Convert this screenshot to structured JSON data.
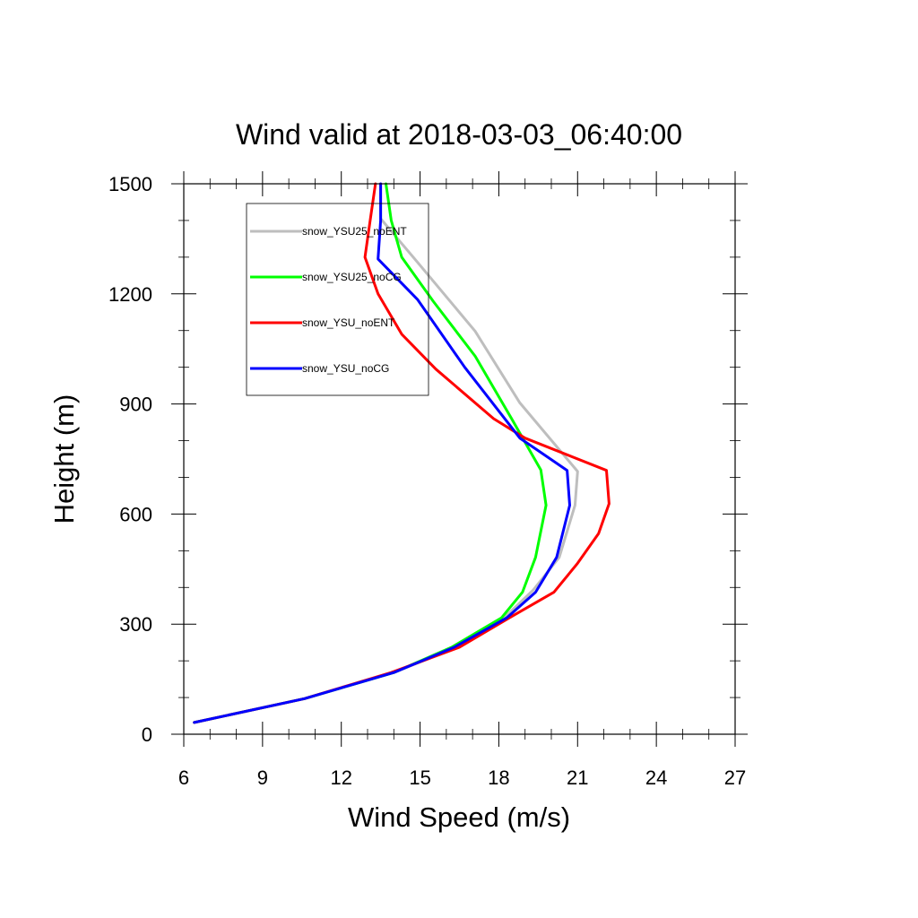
{
  "chart_data": {
    "type": "line",
    "title": "Wind valid at 2018-03-03_06:40:00",
    "xlabel": "Wind Speed (m/s)",
    "ylabel": "Height (m)",
    "xlim": [
      6,
      27
    ],
    "ylim": [
      0,
      1500
    ],
    "xticks": [
      "6",
      "9",
      "12",
      "15",
      "18",
      "21",
      "24",
      "27"
    ],
    "yticks": [
      "0",
      "300",
      "600",
      "900",
      "1200",
      "1500"
    ],
    "grid": false,
    "legend_position": "top-left",
    "series": [
      {
        "name": "snow_YSU25_noENT",
        "color": "#bebebe",
        "points": [
          [
            6.4,
            32
          ],
          [
            10.6,
            97
          ],
          [
            14.0,
            168
          ],
          [
            16.4,
            237
          ],
          [
            18.2,
            317
          ],
          [
            19.3,
            392
          ],
          [
            20.3,
            482
          ],
          [
            20.9,
            624
          ],
          [
            21.0,
            716
          ],
          [
            18.8,
            903
          ],
          [
            17.1,
            1098
          ],
          [
            14.8,
            1295
          ],
          [
            13.5,
            1405
          ],
          [
            13.5,
            1500
          ]
        ]
      },
      {
        "name": "snow_YSU25_noCG",
        "color": "#00ff00",
        "points": [
          [
            6.4,
            32
          ],
          [
            10.6,
            97
          ],
          [
            14.0,
            168
          ],
          [
            16.2,
            237
          ],
          [
            18.1,
            317
          ],
          [
            18.9,
            387
          ],
          [
            19.4,
            482
          ],
          [
            19.8,
            624
          ],
          [
            19.6,
            720
          ],
          [
            18.5,
            858
          ],
          [
            17.1,
            1030
          ],
          [
            15.5,
            1180
          ],
          [
            14.3,
            1300
          ],
          [
            13.9,
            1400
          ],
          [
            13.7,
            1500
          ]
        ]
      },
      {
        "name": "snow_YSU_noENT",
        "color": "#ff0000",
        "points": [
          [
            6.4,
            32
          ],
          [
            10.6,
            97
          ],
          [
            13.9,
            168
          ],
          [
            16.5,
            237
          ],
          [
            18.4,
            317
          ],
          [
            20.1,
            387
          ],
          [
            21.0,
            466
          ],
          [
            21.8,
            547
          ],
          [
            22.2,
            628
          ],
          [
            22.1,
            719
          ],
          [
            19.0,
            807
          ],
          [
            17.8,
            860
          ],
          [
            15.6,
            995
          ],
          [
            14.3,
            1090
          ],
          [
            13.4,
            1200
          ],
          [
            12.9,
            1300
          ],
          [
            13.1,
            1400
          ],
          [
            13.3,
            1500
          ]
        ]
      },
      {
        "name": "snow_YSU_noCG",
        "color": "#0000ff",
        "points": [
          [
            6.4,
            32
          ],
          [
            10.6,
            97
          ],
          [
            14.0,
            168
          ],
          [
            16.3,
            237
          ],
          [
            18.3,
            317
          ],
          [
            19.4,
            387
          ],
          [
            20.2,
            482
          ],
          [
            20.7,
            624
          ],
          [
            20.6,
            719
          ],
          [
            18.8,
            807
          ],
          [
            16.7,
            1000
          ],
          [
            14.9,
            1185
          ],
          [
            13.4,
            1295
          ],
          [
            13.5,
            1400
          ],
          [
            13.5,
            1500
          ]
        ]
      }
    ]
  }
}
